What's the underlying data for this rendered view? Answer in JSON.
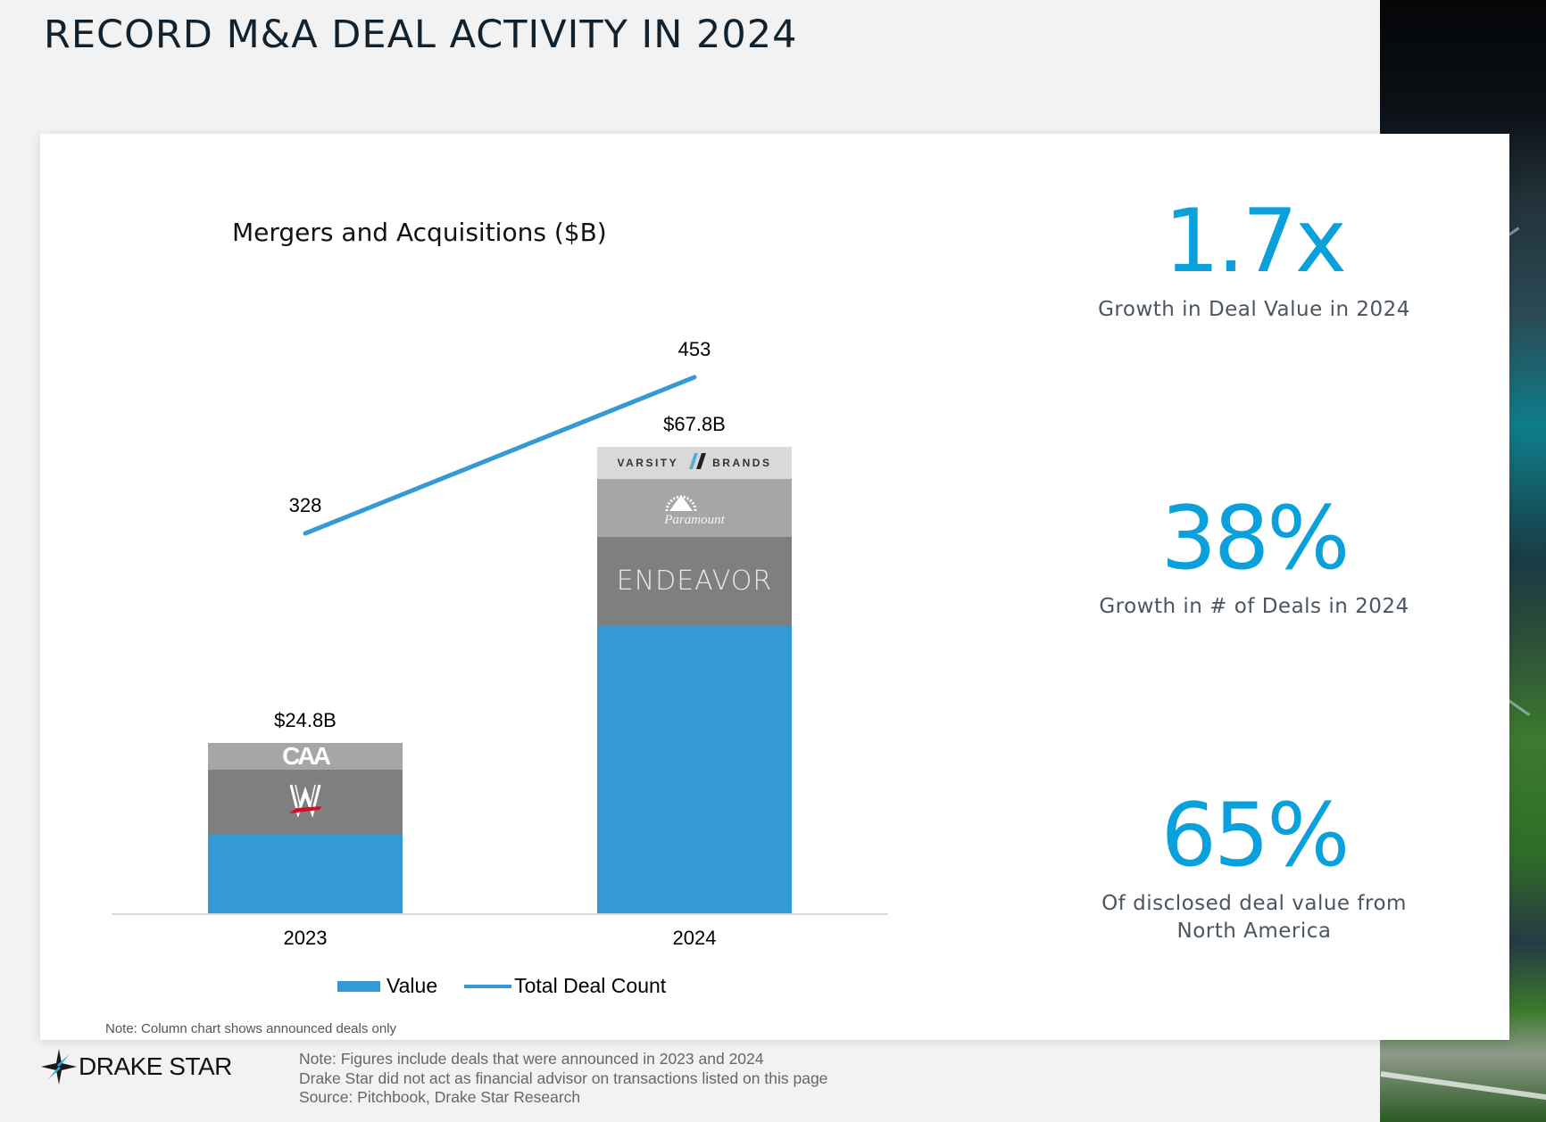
{
  "page": {
    "title": "RECORD M&A DEAL ACTIVITY IN 2024",
    "chart_note": "Note: Column chart shows announced deals only",
    "footer_lines": [
      "Note: Figures include deals that were announced in 2023 and 2024",
      "Drake Star did not act as financial advisor on transactions listed on this page",
      "Source: Pitchbook, Drake Star Research"
    ],
    "logo_text": "DRAKE STAR"
  },
  "stats": [
    {
      "value": "1.7x",
      "label": "Growth in Deal Value in 2024"
    },
    {
      "value": "38%",
      "label": "Growth in # of Deals in 2024"
    },
    {
      "value": "65%",
      "label": "Of disclosed deal value from North America"
    }
  ],
  "colors": {
    "accent": "#0aa0dc",
    "bar": "#339ad6",
    "dark_gray": "#7f7f7f",
    "mid_gray": "#a6a6a6",
    "light_gray": "#d9d9d9"
  },
  "chart_data": {
    "type": "bar",
    "title": "Mergers and Acquisitions ($B)",
    "categories": [
      "2023",
      "2024"
    ],
    "stacked": true,
    "ylim": [
      0,
      100
    ],
    "y2lim": [
      24,
      575
    ],
    "grid": false,
    "legend_position": "bottom",
    "series": [
      {
        "name": "Value",
        "type": "bar",
        "totals": [
          24.8,
          67.8
        ],
        "total_labels": [
          "$24.8B",
          "$67.8B"
        ]
      },
      {
        "name": "Total Deal Count",
        "type": "line",
        "values": [
          328,
          453
        ],
        "value_labels": [
          "328",
          "453"
        ]
      }
    ],
    "stack_segments": [
      [
        {
          "value": 11.5,
          "color": "#339ad6"
        },
        {
          "value": 9.4,
          "color": "#7f7f7f",
          "logo": "wwe",
          "logo_text": "W"
        },
        {
          "value": 3.9,
          "color": "#a6a6a6",
          "logo": "caa",
          "logo_text": "CAA"
        }
      ],
      [
        {
          "value": 41.7,
          "color": "#339ad6"
        },
        {
          "value": 13.0,
          "color": "#7f7f7f",
          "logo": "endeavor",
          "logo_text": "ENDEAVOR"
        },
        {
          "value": 8.4,
          "color": "#a6a6a6",
          "logo": "paramount",
          "logo_text": "Paramount"
        },
        {
          "value": 4.7,
          "color": "#d9d9d9",
          "logo": "varsity",
          "logo_text": "VARSITY BRANDS"
        }
      ]
    ]
  }
}
